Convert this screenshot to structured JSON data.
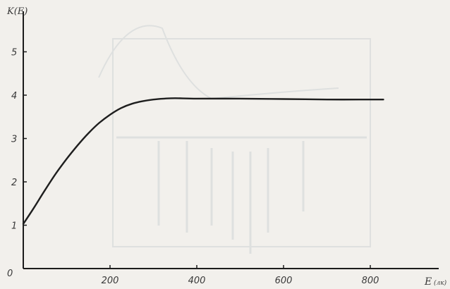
{
  "chart_data": {
    "type": "line",
    "title": "",
    "xlabel": "E",
    "xunit": "(лк)",
    "ylabel": "K(E)",
    "xlim": [
      0,
      1000
    ],
    "ylim": [
      0,
      6
    ],
    "grid": false,
    "x_ticks": [
      "0",
      "200",
      "400",
      "600",
      "800"
    ],
    "y_ticks": [
      "1",
      "2",
      "3",
      "4",
      "5"
    ],
    "origin_label": "0",
    "series": [
      {
        "x": [
          0,
          25,
          50,
          75,
          100,
          125,
          150,
          175,
          200,
          225,
          250,
          275,
          300,
          325,
          350,
          400,
          500,
          600,
          700,
          800,
          830
        ],
        "y": [
          1.03,
          1.41,
          1.81,
          2.19,
          2.53,
          2.84,
          3.12,
          3.36,
          3.55,
          3.7,
          3.8,
          3.86,
          3.9,
          3.92,
          3.93,
          3.92,
          3.92,
          3.91,
          3.9,
          3.9,
          3.9
        ]
      }
    ]
  }
}
